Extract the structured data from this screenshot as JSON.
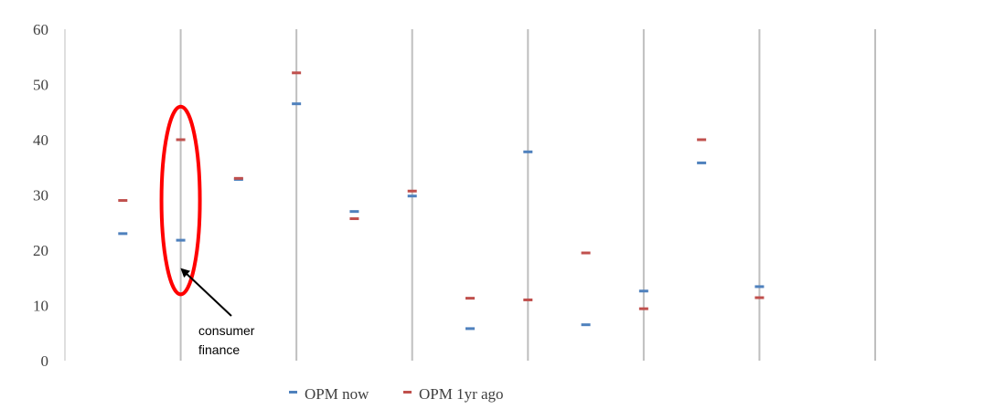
{
  "chart_data": {
    "type": "scatter",
    "ylim": [
      0,
      60
    ],
    "yticks": [
      "0",
      "10",
      "20",
      "30",
      "40",
      "50",
      "60"
    ],
    "xlim": [
      0,
      14
    ],
    "x": [
      1,
      2,
      3,
      4,
      5,
      6,
      7,
      8,
      9,
      10,
      11,
      12
    ],
    "gridlines_x": [
      2,
      4,
      6,
      8,
      10,
      12,
      14
    ],
    "series": [
      {
        "name": "OPM now",
        "color": "#4f81bd",
        "values": [
          23,
          21.8,
          32.8,
          46.5,
          27,
          29.8,
          5.8,
          37.8,
          6.5,
          12.6,
          35.8,
          13.4
        ]
      },
      {
        "name": "OPM 1yr ago",
        "color": "#c0504d",
        "values": [
          29,
          40,
          33,
          52.1,
          25.7,
          30.7,
          11.3,
          11,
          19.5,
          9.4,
          40,
          11.4
        ]
      }
    ],
    "annotation": {
      "label_lines": [
        "consumer",
        "finance"
      ],
      "highlight_x": 2,
      "highlight_y_range": [
        12,
        46
      ],
      "color": "#ff0000"
    },
    "legend_position": "bottom"
  }
}
